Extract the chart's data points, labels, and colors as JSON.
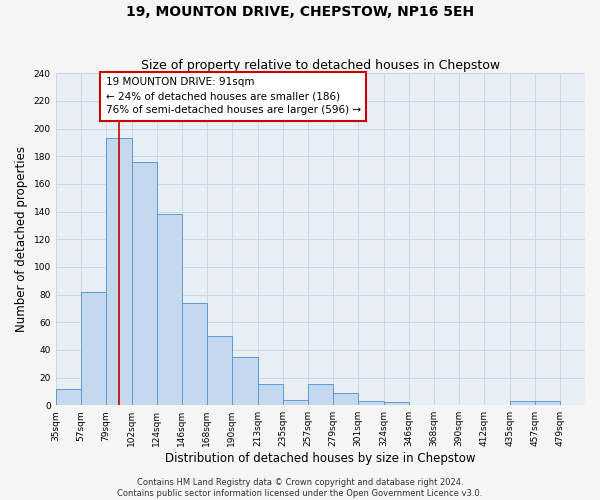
{
  "title": "19, MOUNTON DRIVE, CHEPSTOW, NP16 5EH",
  "subtitle": "Size of property relative to detached houses in Chepstow",
  "xlabel": "Distribution of detached houses by size in Chepstow",
  "ylabel": "Number of detached properties",
  "bar_edges": [
    35,
    57,
    79,
    102,
    124,
    146,
    168,
    190,
    213,
    235,
    257,
    279,
    301,
    324,
    346,
    368,
    390,
    412,
    435,
    457,
    479,
    501
  ],
  "bar_heights": [
    12,
    82,
    193,
    176,
    138,
    74,
    50,
    35,
    15,
    4,
    15,
    9,
    3,
    2,
    0,
    0,
    0,
    0,
    3,
    3,
    0
  ],
  "bar_color": "#c5d8ed",
  "bar_edge_color": "#5b9bd5",
  "property_line_x": 91,
  "property_line_color": "#cc0000",
  "annotation_line1": "19 MOUNTON DRIVE: 91sqm",
  "annotation_line2": "← 24% of detached houses are smaller (186)",
  "annotation_line3": "76% of semi-detached houses are larger (596) →",
  "annotation_box_color": "#ffffff",
  "annotation_box_edge_color": "#cc0000",
  "ylim": [
    0,
    240
  ],
  "yticks": [
    0,
    20,
    40,
    60,
    80,
    100,
    120,
    140,
    160,
    180,
    200,
    220,
    240
  ],
  "grid_color": "#cdd6e4",
  "background_color": "#e8eef5",
  "fig_background_color": "#f5f5f5",
  "footer_line1": "Contains HM Land Registry data © Crown copyright and database right 2024.",
  "footer_line2": "Contains public sector information licensed under the Open Government Licence v3.0.",
  "x_tick_labels": [
    "35sqm",
    "57sqm",
    "79sqm",
    "102sqm",
    "124sqm",
    "146sqm",
    "168sqm",
    "190sqm",
    "213sqm",
    "235sqm",
    "257sqm",
    "279sqm",
    "301sqm",
    "324sqm",
    "346sqm",
    "368sqm",
    "390sqm",
    "412sqm",
    "435sqm",
    "457sqm",
    "479sqm"
  ],
  "title_fontsize": 10,
  "subtitle_fontsize": 9,
  "annotation_fontsize": 7.5,
  "tick_fontsize": 6.5,
  "label_fontsize": 8.5,
  "footer_fontsize": 6.0
}
